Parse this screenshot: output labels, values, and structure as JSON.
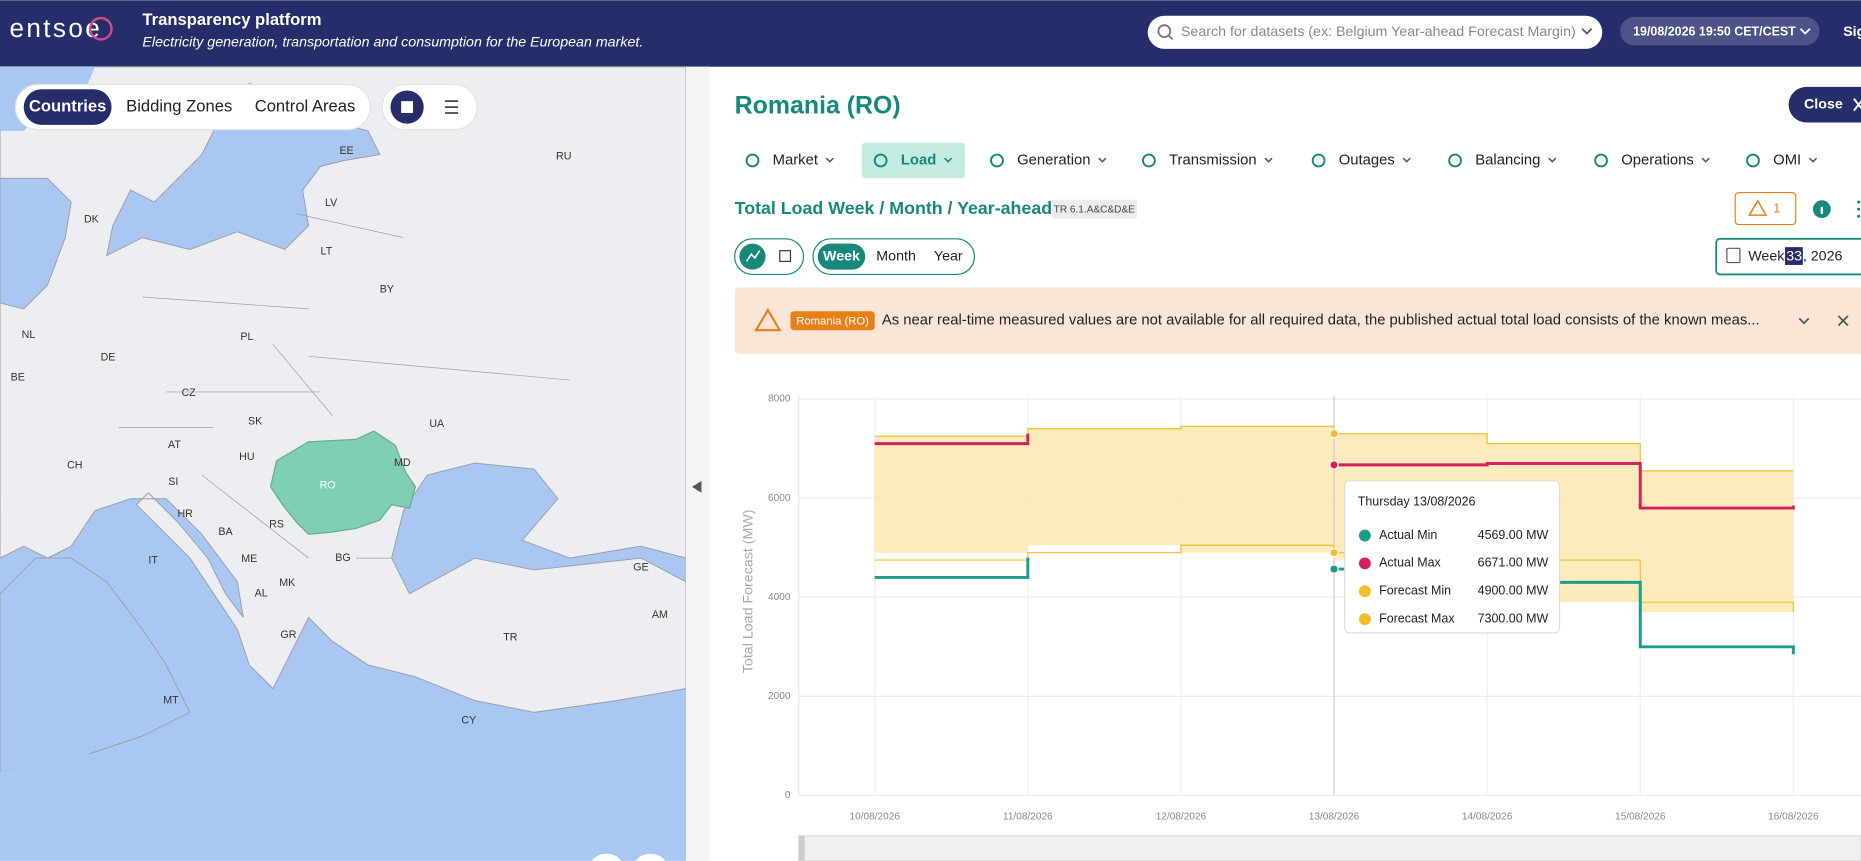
{
  "header": {
    "logo": "entsoe",
    "title": "Transparency platform",
    "subtitle": "Electricity generation, transportation and consumption for the European market.",
    "search_placeholder": "Search for datasets (ex: Belgium Year-ahead Forecast Margin)",
    "datetime": "19/08/2026 19:50 CET/CEST",
    "sign_in": "Sig"
  },
  "map": {
    "tabs": [
      "Countries",
      "Bidding Zones",
      "Control Areas"
    ],
    "labels": [
      "RU",
      "EE",
      "LV",
      "DK",
      "LT",
      "BY",
      "NL",
      "DE",
      "PL",
      "BE",
      "CZ",
      "UA",
      "SK",
      "MD",
      "AT",
      "HU",
      "RO",
      "CH",
      "SI",
      "HR",
      "BA",
      "RS",
      "IT",
      "ME",
      "BG",
      "AL",
      "MK",
      "GE",
      "AM",
      "GR",
      "TR",
      "MT",
      "CY"
    ]
  },
  "panel": {
    "title": "Romania (RO)",
    "close": "Close",
    "menu": [
      "Market",
      "Load",
      "Generation",
      "Transmission",
      "Outages",
      "Balancing",
      "Operations",
      "OMI"
    ],
    "dataset_title": "Total Load Week / Month / Year-ahead",
    "dataset_code": "TR 6.1.A&C&D&E",
    "alert_count": 1,
    "periods": [
      "Week",
      "Month",
      "Year"
    ],
    "date_picker": {
      "prefix": "Week",
      "selected": "33",
      "suffix": ", 2026"
    },
    "notice": {
      "badge": "Romania (RO)",
      "text": "As near real-time measured values are not available for all required data, the published actual total load consists of the known meas..."
    }
  },
  "chart_data": {
    "type": "step-line",
    "y_label": "Total Load Forecast (MW)",
    "x": [
      "10/08/2026",
      "11/08/2026",
      "12/08/2026",
      "13/08/2026",
      "14/08/2026",
      "15/08/2026",
      "16/08/2026"
    ],
    "ylim": [
      0,
      8000
    ],
    "yticks": [
      0,
      2000,
      4000,
      6000,
      8000
    ],
    "grid": true,
    "tooltip_title": "Thursday 13/08/2026",
    "series": [
      {
        "name": "Actual Min",
        "color": "#1a9c8a",
        "values": [
          4400,
          4800,
          null,
          4569,
          4300,
          3000,
          2850
        ],
        "value_labels": [
          null,
          null,
          null,
          "4569.00 MW",
          null,
          null,
          null
        ]
      },
      {
        "name": "Actual Max",
        "color": "#d61f5f",
        "values": [
          7100,
          7300,
          null,
          6671,
          6700,
          5800,
          5850
        ],
        "value_labels": [
          null,
          null,
          null,
          "6671.00 MW",
          null,
          null,
          null
        ]
      },
      {
        "name": "Forecast Min",
        "color": "#f3bd2a",
        "values": [
          4750,
          4900,
          5050,
          4900,
          4750,
          3900,
          3700
        ],
        "value_labels": [
          null,
          null,
          null,
          "4900.00 MW",
          null,
          null,
          null
        ]
      },
      {
        "name": "Forecast Max",
        "color": "#f3bd2a",
        "values": [
          7250,
          7400,
          7450,
          7300,
          7100,
          6550,
          6550
        ],
        "value_labels": [
          null,
          null,
          null,
          "7300.00 MW",
          null,
          null,
          null
        ]
      }
    ]
  }
}
